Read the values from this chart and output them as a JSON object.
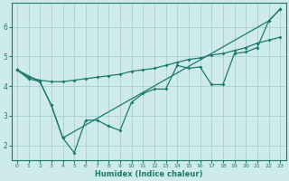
{
  "xlabel": "Humidex (Indice chaleur)",
  "bg_color": "#ceeaea",
  "grid_color": "#aacece",
  "line_color": "#1a7a6e",
  "xlim": [
    -0.5,
    23.5
  ],
  "ylim": [
    1.5,
    6.8
  ],
  "yticks": [
    2,
    3,
    4,
    5,
    6
  ],
  "xticks": [
    0,
    1,
    2,
    3,
    4,
    5,
    6,
    7,
    8,
    9,
    10,
    11,
    12,
    13,
    14,
    15,
    16,
    17,
    18,
    19,
    20,
    21,
    22,
    23
  ],
  "series": {
    "zigzag_x": [
      0,
      1,
      2,
      3,
      4,
      5,
      6,
      7,
      8,
      9,
      10,
      11,
      12,
      13,
      14,
      15,
      16,
      17,
      18,
      19,
      20,
      21,
      22,
      23
    ],
    "zigzag_y": [
      4.55,
      4.25,
      4.15,
      3.35,
      2.25,
      1.75,
      2.85,
      2.85,
      2.65,
      2.5,
      3.45,
      3.75,
      3.9,
      3.9,
      4.7,
      4.6,
      4.65,
      4.05,
      4.05,
      5.1,
      5.15,
      5.3,
      6.2,
      6.6
    ],
    "rising_x": [
      0,
      1,
      2,
      3,
      4,
      5,
      6,
      7,
      8,
      9,
      10,
      11,
      12,
      13,
      14,
      15,
      16,
      17,
      18,
      19,
      20,
      21,
      22,
      23
    ],
    "rising_y": [
      4.55,
      4.3,
      4.2,
      4.15,
      4.15,
      4.2,
      4.25,
      4.3,
      4.35,
      4.4,
      4.5,
      4.55,
      4.6,
      4.7,
      4.8,
      4.9,
      4.95,
      5.05,
      5.1,
      5.2,
      5.3,
      5.45,
      5.55,
      5.65
    ],
    "diag_x": [
      0,
      2,
      3,
      4,
      22,
      23
    ],
    "diag_y": [
      4.55,
      4.15,
      3.35,
      2.25,
      6.2,
      6.6
    ]
  }
}
